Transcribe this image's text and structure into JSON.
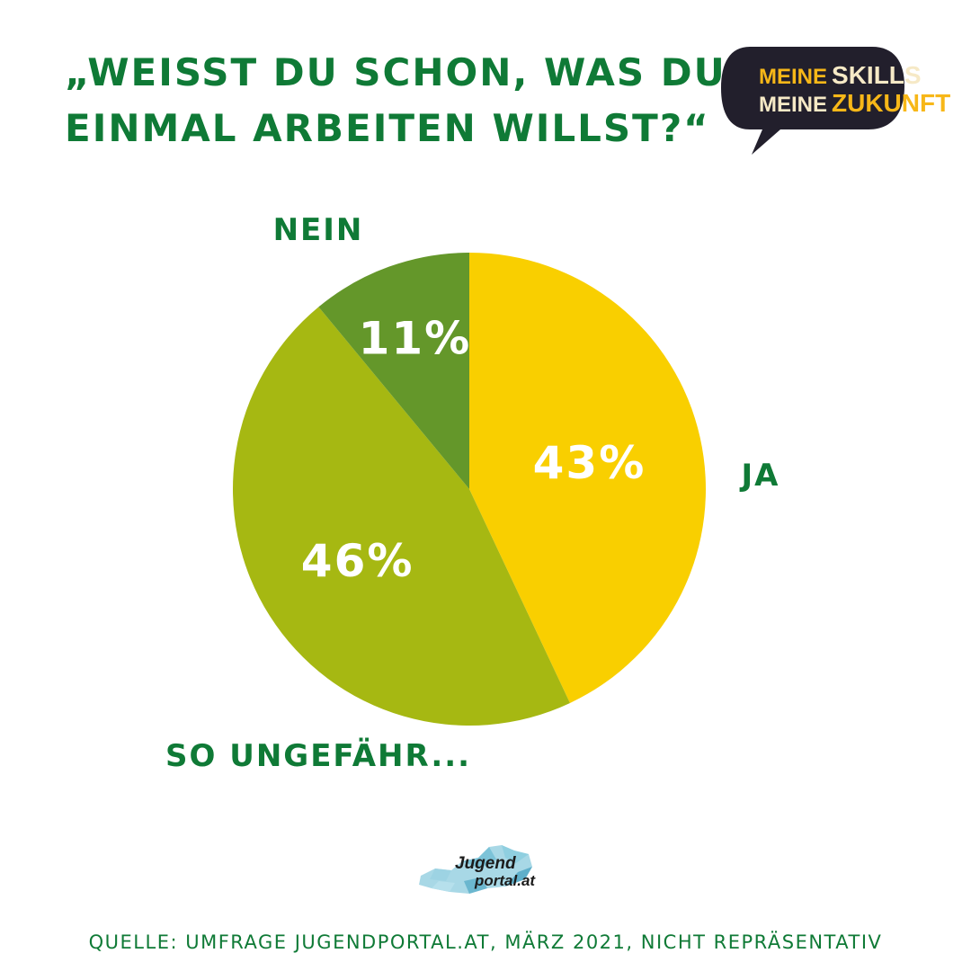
{
  "title": {
    "line1": "„WEISST DU SCHON, WAS DU",
    "line2": "EINMAL ARBEITEN WILLST?“"
  },
  "badge": {
    "line1_word1": "MEINE",
    "line1_word2": "SKILLS",
    "line2_word1": "MEINE",
    "line2_word2": "ZUKUNFT"
  },
  "colors": {
    "title_green": "#0f7a36",
    "ja": "#f9cf00",
    "so_ungefaehr": "#a6b812",
    "nein": "#64972a",
    "pct_text": "#ffffff",
    "badge_bg": "#221f2c",
    "badge_cream": "#f6e9c6",
    "badge_gold": "#f7b718"
  },
  "chart_data": {
    "type": "pie",
    "categories": [
      "JA",
      "SO UNGEFÄHR...",
      "NEIN"
    ],
    "values": [
      43,
      46,
      11
    ],
    "value_labels": [
      "43%",
      "46%",
      "11%"
    ]
  },
  "footer": {
    "logo_line1": "Jugend",
    "logo_line2": "portal.at",
    "source": "QUELLE: UMFRAGE JUGENDPORTAL.AT, MÄRZ 2021, NICHT REPRÄSENTATIV"
  }
}
